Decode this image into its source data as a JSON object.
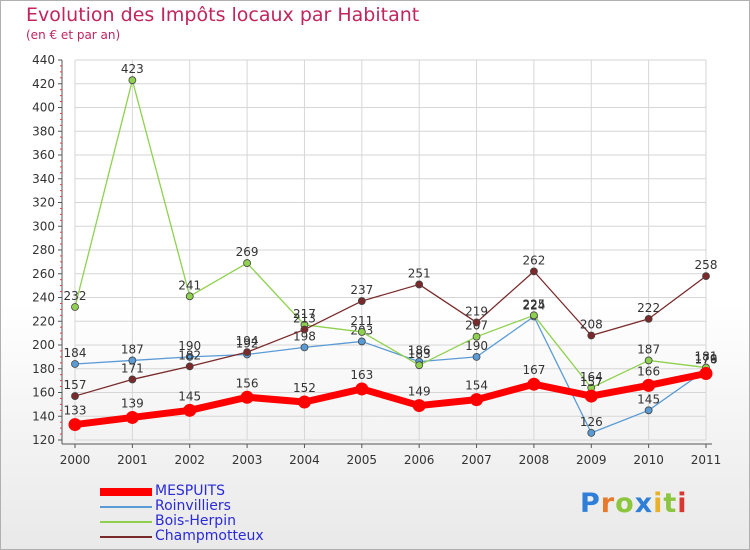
{
  "chart_data": {
    "type": "line",
    "title": "Evolution des Impôts locaux par Habitant",
    "subtitle": "(en € et par an)",
    "categories": [
      "2000",
      "2001",
      "2002",
      "2003",
      "2004",
      "2005",
      "2006",
      "2007",
      "2008",
      "2009",
      "2010",
      "2011"
    ],
    "ylim": [
      120,
      440
    ],
    "yticks": [
      120,
      140,
      160,
      180,
      200,
      220,
      240,
      260,
      280,
      300,
      320,
      340,
      360,
      380,
      400,
      420,
      440
    ],
    "series": [
      {
        "name": "MESPUITS",
        "color": "#ff0000",
        "values": [
          133,
          139,
          145,
          156,
          152,
          163,
          149,
          154,
          167,
          157,
          166,
          176
        ]
      },
      {
        "name": "Roinvilliers",
        "color": "#5b9bd5",
        "values": [
          184,
          187,
          190,
          192,
          198,
          203,
          186,
          190,
          224,
          126,
          145,
          179
        ]
      },
      {
        "name": "Bois-Herpin",
        "color": "#8fd14f",
        "values": [
          232,
          423,
          241,
          269,
          217,
          211,
          183,
          207,
          225,
          164,
          187,
          181
        ]
      },
      {
        "name": "Champmotteux",
        "color": "#7a2a2a",
        "values": [
          157,
          171,
          182,
          194,
          213,
          237,
          251,
          219,
          262,
          208,
          222,
          258
        ]
      }
    ]
  },
  "logo": {
    "text": "Proxiti"
  }
}
